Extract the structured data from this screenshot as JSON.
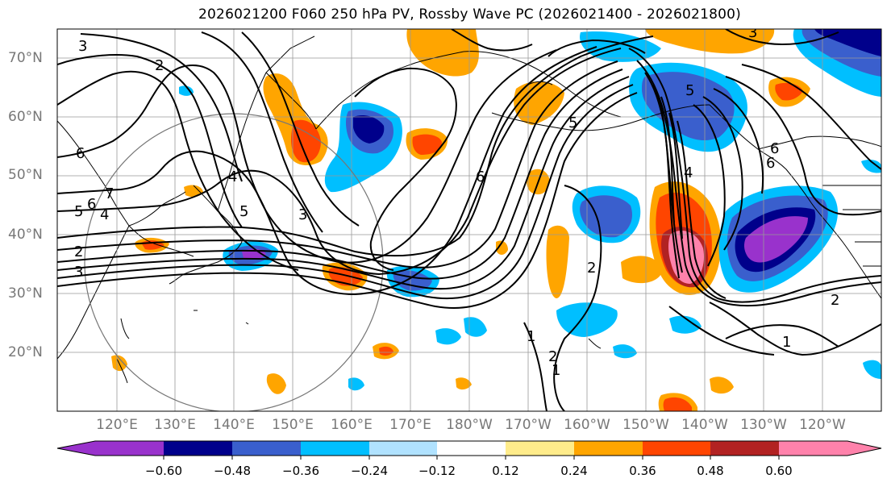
{
  "title": "2026021200 F060 250 hPa PV, Rossby Wave PC (2026021400 - 2026021800)",
  "lat_labels": [
    "70°N",
    "60°N",
    "50°N",
    "40°N",
    "30°N",
    "20°N"
  ],
  "lon_labels": [
    "120°E",
    "130°E",
    "140°E",
    "150°E",
    "160°E",
    "170°E",
    "180°W",
    "170°W",
    "160°W",
    "150°W",
    "140°W",
    "130°W",
    "120°W"
  ],
  "colorbar": {
    "colors": [
      "#9932cc",
      "#00008b",
      "#3a5fcd",
      "#00bfff",
      "#b0e2ff",
      "#ffffff",
      "#ffec8b",
      "#ffa500",
      "#ff4500",
      "#b22222",
      "#ff82ab"
    ],
    "tick_labels": [
      "−0.60",
      "−0.48",
      "−0.36",
      "−0.24",
      "−0.12",
      "0.12",
      "0.24",
      "0.36",
      "0.48",
      "0.60"
    ]
  },
  "contour_labels": [
    "3",
    "2",
    "6",
    "7",
    "6",
    "5",
    "4",
    "2",
    "3",
    "4",
    "5",
    "3",
    "2",
    "6",
    "1",
    "2",
    "1",
    "4",
    "5",
    "6",
    "2",
    "1",
    "3",
    "6",
    "5"
  ]
}
